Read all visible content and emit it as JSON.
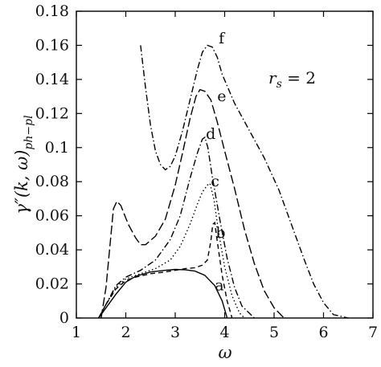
{
  "chart_data": {
    "type": "line",
    "title": "",
    "xlabel": "ω",
    "ylabel": "γ″(k, ω)ph−pl",
    "ylabel_parts": {
      "main": "γ″(k, ω)",
      "sub": "ph−pl"
    },
    "xlim": [
      1,
      7
    ],
    "ylim": [
      0,
      0.18
    ],
    "x_ticks": [
      1,
      2,
      3,
      4,
      5,
      6,
      7
    ],
    "x_tick_labels": [
      "1",
      "2",
      "3",
      "4",
      "5",
      "6",
      "7"
    ],
    "y_ticks": [
      0,
      0.02,
      0.04,
      0.06,
      0.08,
      0.1,
      0.12,
      0.14,
      0.16,
      0.18
    ],
    "y_tick_labels": [
      "0",
      "0.02",
      "0.04",
      "0.06",
      "0.08",
      "0.1",
      "0.12",
      "0.14",
      "0.16",
      "0.18"
    ],
    "grid": false,
    "annotation": {
      "lhs": "r",
      "sub": "s",
      "rhs": " = 2"
    },
    "series": [
      {
        "label": "a",
        "style": "solid",
        "label_at": [
          3.8,
          0.019
        ],
        "points": [
          [
            1.45,
            0
          ],
          [
            1.6,
            0.006
          ],
          [
            1.8,
            0.014
          ],
          [
            2.0,
            0.021
          ],
          [
            2.2,
            0.0245
          ],
          [
            2.5,
            0.027
          ],
          [
            2.8,
            0.028
          ],
          [
            3.0,
            0.0285
          ],
          [
            3.2,
            0.0283
          ],
          [
            3.4,
            0.0275
          ],
          [
            3.6,
            0.025
          ],
          [
            3.8,
            0.019
          ],
          [
            3.95,
            0.01
          ],
          [
            4.05,
            0
          ]
        ]
      },
      {
        "label": "b",
        "style": "dashed",
        "label_at": [
          3.82,
          0.05
        ],
        "points": [
          [
            1.45,
            0
          ],
          [
            1.6,
            0.008
          ],
          [
            1.8,
            0.017
          ],
          [
            2.0,
            0.022
          ],
          [
            2.2,
            0.024
          ],
          [
            2.5,
            0.026
          ],
          [
            2.8,
            0.027
          ],
          [
            3.0,
            0.028
          ],
          [
            3.2,
            0.029
          ],
          [
            3.4,
            0.0295
          ],
          [
            3.55,
            0.031
          ],
          [
            3.65,
            0.034
          ],
          [
            3.72,
            0.045
          ],
          [
            3.76,
            0.055
          ],
          [
            3.8,
            0.056
          ],
          [
            3.85,
            0.045
          ],
          [
            3.95,
            0.025
          ],
          [
            4.05,
            0.01
          ],
          [
            4.15,
            0
          ]
        ]
      },
      {
        "label": "c",
        "style": "dotted",
        "label_at": [
          3.72,
          0.08
        ],
        "points": [
          [
            1.45,
            0
          ],
          [
            1.6,
            0.008
          ],
          [
            1.8,
            0.018
          ],
          [
            2.0,
            0.023
          ],
          [
            2.3,
            0.026
          ],
          [
            2.6,
            0.029
          ],
          [
            2.9,
            0.034
          ],
          [
            3.1,
            0.042
          ],
          [
            3.3,
            0.055
          ],
          [
            3.45,
            0.067
          ],
          [
            3.55,
            0.074
          ],
          [
            3.65,
            0.078
          ],
          [
            3.7,
            0.079
          ],
          [
            3.78,
            0.07
          ],
          [
            3.88,
            0.05
          ],
          [
            4.0,
            0.03
          ],
          [
            4.15,
            0.013
          ],
          [
            4.3,
            0.003
          ],
          [
            4.4,
            0
          ]
        ]
      },
      {
        "label": "d",
        "style": "dashdot",
        "label_at": [
          3.62,
          0.108
        ],
        "points": [
          [
            1.45,
            0
          ],
          [
            1.6,
            0.008
          ],
          [
            1.8,
            0.019
          ],
          [
            2.0,
            0.024
          ],
          [
            2.3,
            0.028
          ],
          [
            2.6,
            0.034
          ],
          [
            2.9,
            0.046
          ],
          [
            3.1,
            0.06
          ],
          [
            3.3,
            0.082
          ],
          [
            3.45,
            0.097
          ],
          [
            3.55,
            0.105
          ],
          [
            3.6,
            0.106
          ],
          [
            3.66,
            0.1
          ],
          [
            3.75,
            0.083
          ],
          [
            3.9,
            0.058
          ],
          [
            4.05,
            0.035
          ],
          [
            4.2,
            0.018
          ],
          [
            4.35,
            0.007
          ],
          [
            4.6,
            0
          ]
        ]
      },
      {
        "label": "e",
        "style": "longdash",
        "label_at": [
          3.85,
          0.13
        ],
        "points": [
          [
            1.5,
            0
          ],
          [
            1.6,
            0.018
          ],
          [
            1.75,
            0.064
          ],
          [
            1.82,
            0.0685
          ],
          [
            1.9,
            0.066
          ],
          [
            2.05,
            0.055
          ],
          [
            2.2,
            0.047
          ],
          [
            2.3,
            0.043
          ],
          [
            2.4,
            0.043
          ],
          [
            2.6,
            0.048
          ],
          [
            2.8,
            0.058
          ],
          [
            3.0,
            0.078
          ],
          [
            3.15,
            0.097
          ],
          [
            3.3,
            0.117
          ],
          [
            3.42,
            0.13
          ],
          [
            3.5,
            0.134
          ],
          [
            3.6,
            0.133
          ],
          [
            3.72,
            0.128
          ],
          [
            3.85,
            0.115
          ],
          [
            4.0,
            0.098
          ],
          [
            4.2,
            0.076
          ],
          [
            4.4,
            0.052
          ],
          [
            4.6,
            0.032
          ],
          [
            4.8,
            0.016
          ],
          [
            5.0,
            0.006
          ],
          [
            5.2,
            0
          ]
        ]
      },
      {
        "label": "f",
        "style": "dashdot",
        "label_at": [
          3.88,
          0.164
        ],
        "points": [
          [
            2.3,
            0.16
          ],
          [
            2.4,
            0.135
          ],
          [
            2.5,
            0.113
          ],
          [
            2.6,
            0.098
          ],
          [
            2.7,
            0.09
          ],
          [
            2.8,
            0.087
          ],
          [
            2.9,
            0.089
          ],
          [
            3.0,
            0.095
          ],
          [
            3.15,
            0.11
          ],
          [
            3.3,
            0.128
          ],
          [
            3.45,
            0.146
          ],
          [
            3.55,
            0.156
          ],
          [
            3.65,
            0.16
          ],
          [
            3.75,
            0.159
          ],
          [
            3.85,
            0.153
          ],
          [
            3.95,
            0.143
          ],
          [
            4.2,
            0.126
          ],
          [
            4.5,
            0.11
          ],
          [
            4.8,
            0.094
          ],
          [
            5.1,
            0.075
          ],
          [
            5.35,
            0.055
          ],
          [
            5.6,
            0.035
          ],
          [
            5.8,
            0.02
          ],
          [
            6.0,
            0.009
          ],
          [
            6.2,
            0.002
          ],
          [
            6.5,
            0
          ]
        ]
      }
    ]
  }
}
